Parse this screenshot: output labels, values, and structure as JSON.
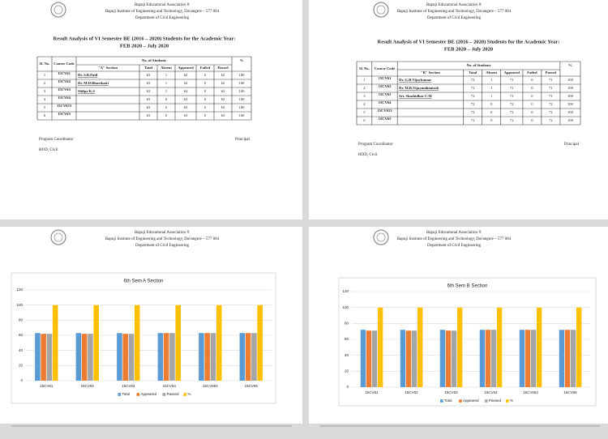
{
  "pages": [
    {
      "header": [
        "Bapuji Educational Association ®",
        "Bapuji Institute of Engineering and Technology, Davangere – 577 004",
        "Department of Civil Engineering"
      ],
      "title": [
        "Result Analysis of VI Semester BE (2016 – 2020) Students for the Academic Year:",
        "FEB 2020 – July 2020"
      ],
      "table": {
        "head": {
          "sl": "Sl. No.",
          "code": "Course Code",
          "group": "No. of Students",
          "pct": "%",
          "section": "\"A\" Section",
          "cols": [
            "Total",
            "Absent",
            "Appeared",
            "Failed",
            "Passed"
          ]
        },
        "rows": [
          [
            1,
            "15CV61",
            "Dr. S.B.Patil",
            63,
            1,
            62,
            0,
            62,
            100
          ],
          [
            2,
            "15CV62",
            "Dr. M.D.Bhavikatti",
            63,
            1,
            62,
            0,
            62,
            100
          ],
          [
            3,
            "15CV63",
            "Shilpa K.S",
            63,
            1,
            62,
            0,
            62,
            100
          ],
          [
            4,
            "15CV64",
            null,
            63,
            0,
            63,
            0,
            63,
            100
          ],
          [
            5,
            "15CV653",
            null,
            63,
            0,
            63,
            0,
            63,
            100
          ],
          [
            6,
            "15CV65",
            null,
            63,
            0,
            63,
            0,
            63,
            100
          ]
        ]
      },
      "footer": {
        "left": "Program Coordinator",
        "right": "Principal",
        "bottom": "HOD, Civil"
      }
    },
    {
      "header": [
        "Bapuji Educational Association ®",
        "Bapuji Institute of Engineering and Technology, Davangere – 577 004",
        "Department of Civil Engineering"
      ],
      "title": [
        "Result Analysis of VI Semester BE (2016 – 2020) Students for the Academic Year:",
        "FEB 2020 – July 2020"
      ],
      "table": {
        "head": {
          "sl": "Sl. No.",
          "code": "Course Code",
          "group": "No. of Students",
          "pct": "%",
          "section": "\"B\" Section",
          "cols": [
            "Total",
            "Absent",
            "Appeared",
            "Failed",
            "Passed"
          ]
        },
        "rows": [
          [
            1,
            "15CV61",
            "Dr. G.B.Vijaykumar",
            72,
            1,
            71,
            0,
            71,
            100
          ],
          [
            2,
            "15CV62",
            "Dr. M.B.Vijaymahantesh",
            72,
            1,
            71,
            0,
            71,
            100
          ],
          [
            3,
            "15CV63",
            "Sri. Shashidhar C.M",
            72,
            1,
            71,
            0,
            71,
            100
          ],
          [
            4,
            "15CV64",
            null,
            72,
            0,
            72,
            0,
            72,
            100
          ],
          [
            5,
            "15CV653",
            null,
            72,
            0,
            72,
            0,
            72,
            100
          ],
          [
            6,
            "15CV65",
            null,
            72,
            0,
            72,
            0,
            72,
            100
          ]
        ]
      },
      "footer": {
        "left": "Program Coordinator",
        "right": "Principal",
        "bottom": "HOD, Civil"
      }
    }
  ],
  "chart_pages": [
    {
      "header": [
        "Bapuji Educational Association ®",
        "Bapuji Institute of Engineering and Technology, Davangere – 577 004",
        "Department of Civil Engineering"
      ]
    },
    {
      "header": [
        "Bapuji Educational Association ®",
        "Bapuji Institute of Engineering and Technology, Davangere – 577 004",
        "Department of Civil Engineering"
      ]
    }
  ],
  "chart_data": [
    {
      "type": "bar",
      "title": "6th Sem A Section",
      "categories": [
        "15CV61",
        "15CV62",
        "15CV63",
        "15CV64",
        "15CV653",
        "15CV65"
      ],
      "series": [
        {
          "name": "Total",
          "color": "#5b9bd5",
          "values": [
            63,
            63,
            63,
            63,
            63,
            63
          ]
        },
        {
          "name": "Appeared",
          "color": "#ed7d31",
          "values": [
            62,
            62,
            62,
            63,
            63,
            63
          ]
        },
        {
          "name": "Passed",
          "color": "#a5a5a5",
          "values": [
            62,
            62,
            62,
            63,
            63,
            63
          ]
        },
        {
          "name": "%",
          "color": "#ffc000",
          "values": [
            100,
            100,
            100,
            100,
            100,
            100
          ]
        }
      ],
      "ylim": [
        0,
        120
      ],
      "yticks": [
        0,
        20,
        40,
        60,
        80,
        100,
        120
      ],
      "grid": true,
      "legend": "bottom"
    },
    {
      "type": "bar",
      "title": "6th Sem B Section",
      "categories": [
        "15CV61",
        "15CV62",
        "15CV63",
        "15CV64",
        "15CV653",
        "15CV65"
      ],
      "series": [
        {
          "name": "Total",
          "color": "#5b9bd5",
          "values": [
            72,
            72,
            72,
            72,
            72,
            72
          ]
        },
        {
          "name": "Appeared",
          "color": "#ed7d31",
          "values": [
            71,
            71,
            71,
            72,
            72,
            72
          ]
        },
        {
          "name": "Passed",
          "color": "#a5a5a5",
          "values": [
            71,
            71,
            71,
            72,
            72,
            72
          ]
        },
        {
          "name": "%",
          "color": "#ffc000",
          "values": [
            100,
            100,
            100,
            100,
            100,
            100
          ]
        }
      ],
      "ylim": [
        0,
        120
      ],
      "yticks": [
        0,
        20,
        40,
        60,
        80,
        100,
        120
      ],
      "grid": true,
      "legend": "bottom"
    }
  ]
}
